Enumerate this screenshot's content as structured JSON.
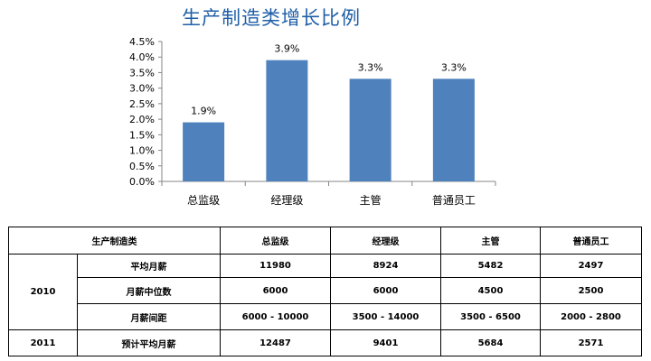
{
  "chart_data": {
    "type": "bar",
    "title": "生产制造类增长比例",
    "categories": [
      "总监级",
      "经理级",
      "主管",
      "普通员工"
    ],
    "values": [
      1.9,
      3.9,
      3.3,
      3.3
    ],
    "value_labels": [
      "1.9%",
      "3.9%",
      "3.3%",
      "3.3%"
    ],
    "ylim": [
      0,
      4.5
    ],
    "yticks": [
      "0.0%",
      "0.5%",
      "1.0%",
      "1.5%",
      "2.0%",
      "2.5%",
      "3.0%",
      "3.5%",
      "4.0%",
      "4.5%"
    ],
    "xlabel": "",
    "ylabel": "",
    "grid": false,
    "bar_color": "#4f81bd"
  },
  "table": {
    "header_label": "生产制造类",
    "columns": [
      "总监级",
      "经理级",
      "主管",
      "普通员工"
    ],
    "groups": [
      {
        "year": "2010",
        "rows": [
          {
            "metric": "平均月薪",
            "values": [
              "11980",
              "8924",
              "5482",
              "2497"
            ]
          },
          {
            "metric": "月薪中位数",
            "values": [
              "6000",
              "6000",
              "4500",
              "2500"
            ]
          },
          {
            "metric": "月薪间距",
            "values": [
              "6000 - 10000",
              "3500 - 14000",
              "3500 - 6500",
              "2000 - 2800"
            ]
          }
        ]
      },
      {
        "year": "2011",
        "rows": [
          {
            "metric": "预计平均月薪",
            "values": [
              "12487",
              "9401",
              "5684",
              "2571"
            ]
          }
        ]
      }
    ]
  }
}
